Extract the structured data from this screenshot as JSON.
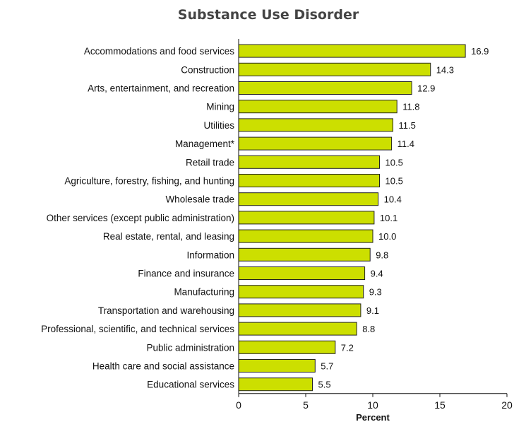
{
  "chart_data": {
    "type": "bar",
    "orientation": "horizontal",
    "title": "Substance Use Disorder",
    "xlabel": "Percent",
    "ylabel": "",
    "xlim": [
      0,
      20
    ],
    "xticks": [
      0,
      5,
      10,
      15,
      20
    ],
    "grid": false,
    "legend": "none",
    "bar_color": "#ccdf00",
    "categories": [
      "Accommodations and food services",
      "Construction",
      "Arts, entertainment, and recreation",
      "Mining",
      "Utilities",
      "Management*",
      "Retail trade",
      "Agriculture, forestry, fishing, and hunting",
      "Wholesale trade",
      "Other services (except public administration)",
      "Real estate, rental, and leasing",
      "Information",
      "Finance and insurance",
      "Manufacturing",
      "Transportation and warehousing",
      "Professional, scientific, and technical services",
      "Public administration",
      "Health care and social assistance",
      "Educational services"
    ],
    "values": [
      16.9,
      14.3,
      12.9,
      11.8,
      11.5,
      11.4,
      10.5,
      10.5,
      10.4,
      10.1,
      10.0,
      9.8,
      9.4,
      9.3,
      9.1,
      8.8,
      7.2,
      5.7,
      5.5
    ],
    "value_labels": [
      "16.9",
      "14.3",
      "12.9",
      "11.8",
      "11.5",
      "11.4",
      "10.5",
      "10.5",
      "10.4",
      "10.1",
      "10.0",
      "9.8",
      "9.4",
      "9.3",
      "9.1",
      "8.8",
      "7.2",
      "5.7",
      "5.5"
    ]
  }
}
